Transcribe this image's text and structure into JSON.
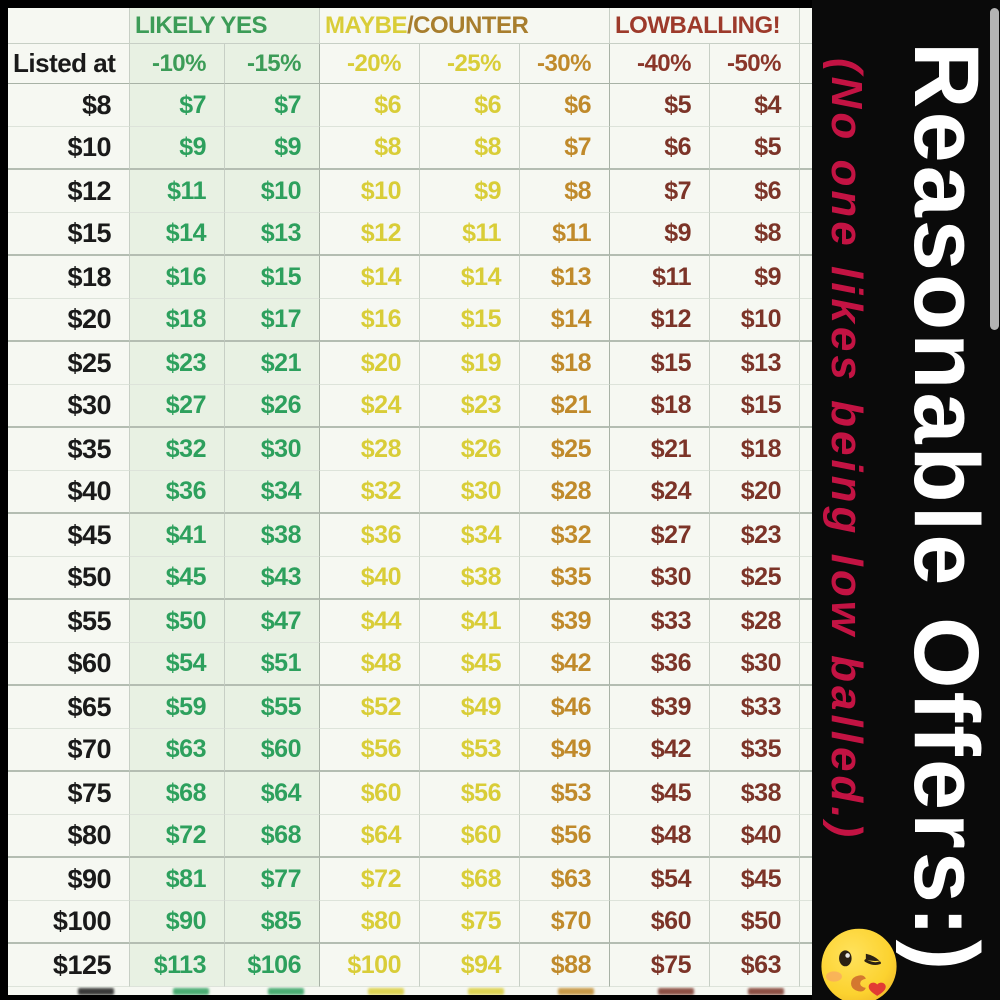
{
  "chart_data": {
    "type": "table",
    "title": "Reasonable Offers:)",
    "annotation": "(No one likes being low balled.)",
    "corner_header": "Listed at",
    "column_groups": [
      {
        "label": "LIKELY YES",
        "span": 2
      },
      {
        "label": "MAYBE",
        "label2": "/COUNTER",
        "span": 3
      },
      {
        "label": "LOWBALLING!",
        "span": 2
      }
    ],
    "columns": [
      "-10%",
      "-15%",
      "-20%",
      "-25%",
      "-30%",
      "-40%",
      "-50%"
    ],
    "rows": [
      {
        "listed": "$8",
        "offers": [
          "$7",
          "$7",
          "$6",
          "$6",
          "$6",
          "$5",
          "$4"
        ]
      },
      {
        "listed": "$10",
        "offers": [
          "$9",
          "$9",
          "$8",
          "$8",
          "$7",
          "$6",
          "$5"
        ]
      },
      {
        "listed": "$12",
        "offers": [
          "$11",
          "$10",
          "$10",
          "$9",
          "$8",
          "$7",
          "$6"
        ]
      },
      {
        "listed": "$15",
        "offers": [
          "$14",
          "$13",
          "$12",
          "$11",
          "$11",
          "$9",
          "$8"
        ]
      },
      {
        "listed": "$18",
        "offers": [
          "$16",
          "$15",
          "$14",
          "$14",
          "$13",
          "$11",
          "$9"
        ]
      },
      {
        "listed": "$20",
        "offers": [
          "$18",
          "$17",
          "$16",
          "$15",
          "$14",
          "$12",
          "$10"
        ]
      },
      {
        "listed": "$25",
        "offers": [
          "$23",
          "$21",
          "$20",
          "$19",
          "$18",
          "$15",
          "$13"
        ]
      },
      {
        "listed": "$30",
        "offers": [
          "$27",
          "$26",
          "$24",
          "$23",
          "$21",
          "$18",
          "$15"
        ]
      },
      {
        "listed": "$35",
        "offers": [
          "$32",
          "$30",
          "$28",
          "$26",
          "$25",
          "$21",
          "$18"
        ]
      },
      {
        "listed": "$40",
        "offers": [
          "$36",
          "$34",
          "$32",
          "$30",
          "$28",
          "$24",
          "$20"
        ]
      },
      {
        "listed": "$45",
        "offers": [
          "$41",
          "$38",
          "$36",
          "$34",
          "$32",
          "$27",
          "$23"
        ]
      },
      {
        "listed": "$50",
        "offers": [
          "$45",
          "$43",
          "$40",
          "$38",
          "$35",
          "$30",
          "$25"
        ]
      },
      {
        "listed": "$55",
        "offers": [
          "$50",
          "$47",
          "$44",
          "$41",
          "$39",
          "$33",
          "$28"
        ]
      },
      {
        "listed": "$60",
        "offers": [
          "$54",
          "$51",
          "$48",
          "$45",
          "$42",
          "$36",
          "$30"
        ]
      },
      {
        "listed": "$65",
        "offers": [
          "$59",
          "$55",
          "$52",
          "$49",
          "$46",
          "$39",
          "$33"
        ]
      },
      {
        "listed": "$70",
        "offers": [
          "$63",
          "$60",
          "$56",
          "$53",
          "$49",
          "$42",
          "$35"
        ]
      },
      {
        "listed": "$75",
        "offers": [
          "$68",
          "$64",
          "$60",
          "$56",
          "$53",
          "$45",
          "$38"
        ]
      },
      {
        "listed": "$80",
        "offers": [
          "$72",
          "$68",
          "$64",
          "$60",
          "$56",
          "$48",
          "$40"
        ]
      },
      {
        "listed": "$90",
        "offers": [
          "$81",
          "$77",
          "$72",
          "$68",
          "$63",
          "$54",
          "$45"
        ]
      },
      {
        "listed": "$100",
        "offers": [
          "$90",
          "$85",
          "$80",
          "$75",
          "$70",
          "$60",
          "$50"
        ]
      },
      {
        "listed": "$125",
        "offers": [
          "$113",
          "$106",
          "$100",
          "$94",
          "$88",
          "$75",
          "$63"
        ]
      }
    ]
  },
  "side_panel": {
    "title": "Reasonable Offers:)",
    "note": "(No one likes being low balled.)",
    "emoji": "face-blowing-a-kiss"
  },
  "colors": {
    "likely_yes_header": "#3c9c57",
    "likely_yes_values": "#2da05d",
    "maybe_header_yellow": "#d9cd38",
    "counter_header_brown": "#a87e2e",
    "minus30_values": "#c08a2b",
    "lowballing_header": "#9d3a2b",
    "lowballing_values": "#7c3428",
    "listed_text": "#1a1a1a",
    "band_title_text": "#ffffff",
    "band_note_text": "#c31343",
    "likely_column_bg": "#e8f1e3",
    "table_bg": "#f6f8f2"
  }
}
